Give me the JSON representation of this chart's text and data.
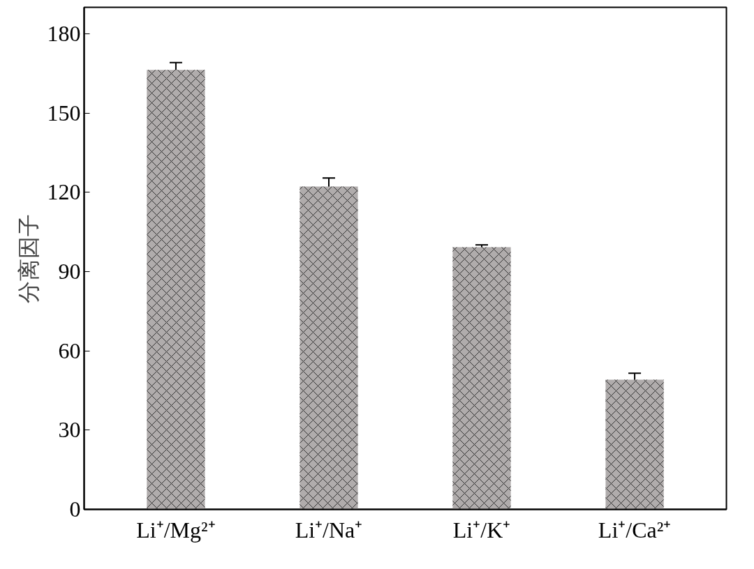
{
  "chart_data": {
    "type": "bar",
    "ylabel": "分离因子",
    "categories": [
      "Li⁺/Mg²⁺",
      "Li⁺/Na⁺",
      "Li⁺/K⁺",
      "Li⁺/Ca²⁺"
    ],
    "values": [
      166.3,
      122.2,
      99.2,
      49.1
    ],
    "errors": [
      2.8,
      3.2,
      0.9,
      2.4
    ],
    "color": "#b0acac",
    "ylim": [
      0,
      190
    ],
    "yticks": [
      0,
      30,
      60,
      90,
      120,
      150,
      180
    ],
    "grid": false
  }
}
